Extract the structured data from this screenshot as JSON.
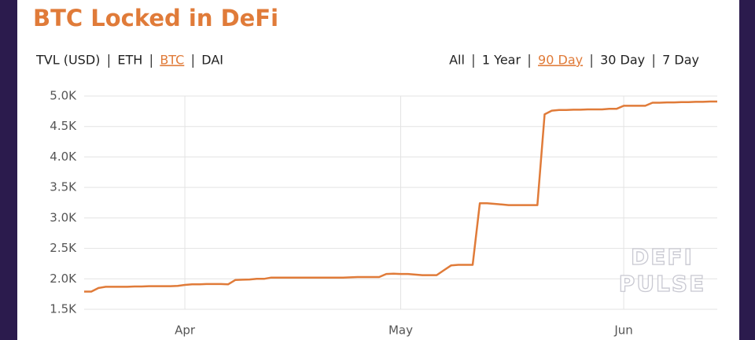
{
  "chart_data": {
    "type": "line",
    "title": "BTC Locked in DeFi",
    "categories": [
      null,
      null,
      null,
      null,
      null,
      null,
      null,
      null,
      null,
      null,
      null,
      null,
      null,
      null,
      "Apr",
      null,
      null,
      null,
      null,
      null,
      null,
      null,
      null,
      null,
      null,
      null,
      null,
      null,
      null,
      null,
      null,
      null,
      null,
      null,
      null,
      null,
      null,
      null,
      null,
      null,
      null,
      null,
      null,
      null,
      "May",
      null,
      null,
      null,
      null,
      null,
      null,
      null,
      null,
      null,
      null,
      null,
      null,
      null,
      null,
      null,
      null,
      null,
      null,
      null,
      null,
      null,
      null,
      null,
      null,
      null,
      null,
      null,
      null,
      null,
      null,
      "Jun",
      null,
      null,
      null,
      null,
      null,
      null,
      null,
      null,
      null,
      null,
      null,
      null,
      null
    ],
    "series": [
      {
        "name": "BTC",
        "color": "#e07b39",
        "values": [
          1790,
          1790,
          1850,
          1870,
          1870,
          1870,
          1870,
          1875,
          1875,
          1880,
          1880,
          1880,
          1880,
          1885,
          1900,
          1910,
          1910,
          1915,
          1915,
          1915,
          1910,
          1980,
          1985,
          1990,
          2000,
          2000,
          2020,
          2020,
          2020,
          2020,
          2020,
          2020,
          2020,
          2020,
          2020,
          2020,
          2020,
          2025,
          2030,
          2030,
          2030,
          2030,
          2080,
          2085,
          2080,
          2080,
          2070,
          2060,
          2060,
          2060,
          2140,
          2220,
          2230,
          2230,
          2230,
          3240,
          3240,
          3230,
          3220,
          3210,
          3210,
          3210,
          3210,
          3210,
          4700,
          4760,
          4770,
          4770,
          4775,
          4775,
          4780,
          4780,
          4780,
          4790,
          4790,
          4840,
          4840,
          4840,
          4840,
          4890,
          4890,
          4895,
          4895,
          4900,
          4900,
          4905,
          4905,
          4910,
          4910
        ]
      }
    ],
    "ylim": [
      1500,
      5000
    ],
    "yticks": [
      {
        "value": 1500,
        "label": "1.5K"
      },
      {
        "value": 2000,
        "label": "2.0K"
      },
      {
        "value": 2500,
        "label": "2.5K"
      },
      {
        "value": 3000,
        "label": "3.0K"
      },
      {
        "value": 3500,
        "label": "3.5K"
      },
      {
        "value": 4000,
        "label": "4.0K"
      },
      {
        "value": 4500,
        "label": "4.5K"
      },
      {
        "value": 5000,
        "label": "5.0K"
      }
    ],
    "grid": true,
    "watermark": [
      "DEFI",
      "PULSE"
    ]
  },
  "controls": {
    "metrics": [
      "TVL (USD)",
      "ETH",
      "BTC",
      "DAI"
    ],
    "metric_selected": 2,
    "ranges": [
      "All",
      "1 Year",
      "90 Day",
      "30 Day",
      "7 Day"
    ],
    "range_selected": 2
  }
}
